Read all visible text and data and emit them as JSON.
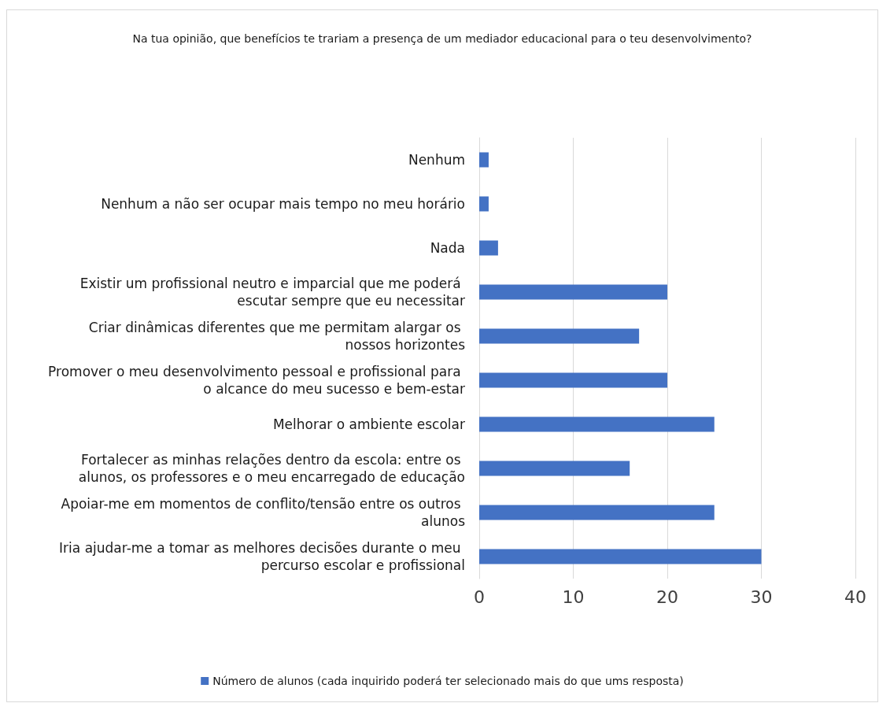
{
  "chart_data": {
    "type": "bar",
    "orientation": "horizontal",
    "title": "Na tua opinião, que benefícios te trariam a presença de um mediador educacional para o teu desenvolvimento?",
    "categories": [
      "Nenhum",
      "Nenhum a não ser ocupar mais tempo no meu horário",
      "Nada",
      "Existir um profissional neutro e imparcial que me poderá escutar sempre que eu necessitar",
      "Criar dinâmicas diferentes que me permitam alargar os nossos horizontes",
      "Promover o meu desenvolvimento pessoal e profissional para o alcance do meu sucesso e bem-estar",
      "Melhorar o ambiente escolar",
      "Fortalecer as minhas relações dentro da escola: entre os alunos, os professores e o meu encarregado de educação",
      "Apoiar-me em momentos de conflito/tensão entre os outros alunos",
      "Iria ajudar-me a tomar as melhores decisões durante o meu percurso escolar e profissional"
    ],
    "series": [
      {
        "name": "Número de alunos (cada inquirido poderá ter selecionado mais do que ums resposta)",
        "color": "#4472c4",
        "values": [
          1,
          1,
          2,
          20,
          17,
          20,
          25,
          16,
          25,
          30
        ]
      }
    ],
    "xlim": [
      0,
      40
    ],
    "xticks": [
      0,
      10,
      20,
      30,
      40
    ],
    "grid": "x",
    "legend": "bottom"
  }
}
